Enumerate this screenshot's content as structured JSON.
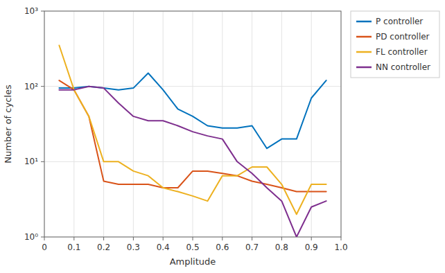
{
  "chart_data": {
    "type": "line",
    "x_label": "Amplitude",
    "y_label": "Number of cycles",
    "x": [
      0.05,
      0.1,
      0.15,
      0.2,
      0.25,
      0.3,
      0.35,
      0.4,
      0.45,
      0.5,
      0.55,
      0.6,
      0.65,
      0.7,
      0.75,
      0.8,
      0.85,
      0.9,
      0.95
    ],
    "series": [
      {
        "name": "P controller",
        "color": "#0072bd",
        "values": [
          95,
          95,
          100,
          95,
          90,
          95,
          150,
          90,
          50,
          40,
          30,
          28,
          28,
          30,
          15,
          20,
          20,
          70,
          120
        ]
      },
      {
        "name": "PD controller",
        "color": "#d95319",
        "values": [
          120,
          90,
          40,
          5.5,
          5.0,
          5.0,
          5.0,
          4.5,
          4.5,
          7.5,
          7.5,
          7.0,
          6.5,
          5.5,
          5.0,
          4.5,
          4.0,
          4.0,
          4.0
        ]
      },
      {
        "name": "FL controller",
        "color": "#edb120",
        "values": [
          350,
          90,
          40,
          10,
          10,
          7.5,
          6.5,
          4.5,
          4.0,
          3.5,
          3.0,
          6.5,
          6.5,
          8.5,
          8.5,
          5.0,
          2.0,
          5.0,
          5.0
        ]
      },
      {
        "name": "NN controller",
        "color": "#7e2f8e",
        "values": [
          90,
          90,
          100,
          95,
          60,
          40,
          35,
          35,
          30,
          25,
          22,
          20,
          10,
          7.0,
          4.5,
          3.0,
          1.0,
          2.5,
          3.0
        ]
      }
    ],
    "xlim": [
      0,
      1.0
    ],
    "ylim": [
      1,
      1000
    ],
    "xticks": [
      0,
      0.1,
      0.2,
      0.3,
      0.4,
      0.5,
      0.6,
      0.7,
      0.8,
      0.9,
      {
        "value": 1.0,
        "label": "1.0"
      }
    ],
    "yticks": [
      {
        "value": 1,
        "label": "10⁰"
      },
      {
        "value": 10,
        "label": "10¹"
      },
      {
        "value": 100,
        "label": "10²"
      },
      {
        "value": 1000,
        "label": "10³"
      }
    ],
    "log": "y",
    "grid": true,
    "legend": "upper right"
  }
}
